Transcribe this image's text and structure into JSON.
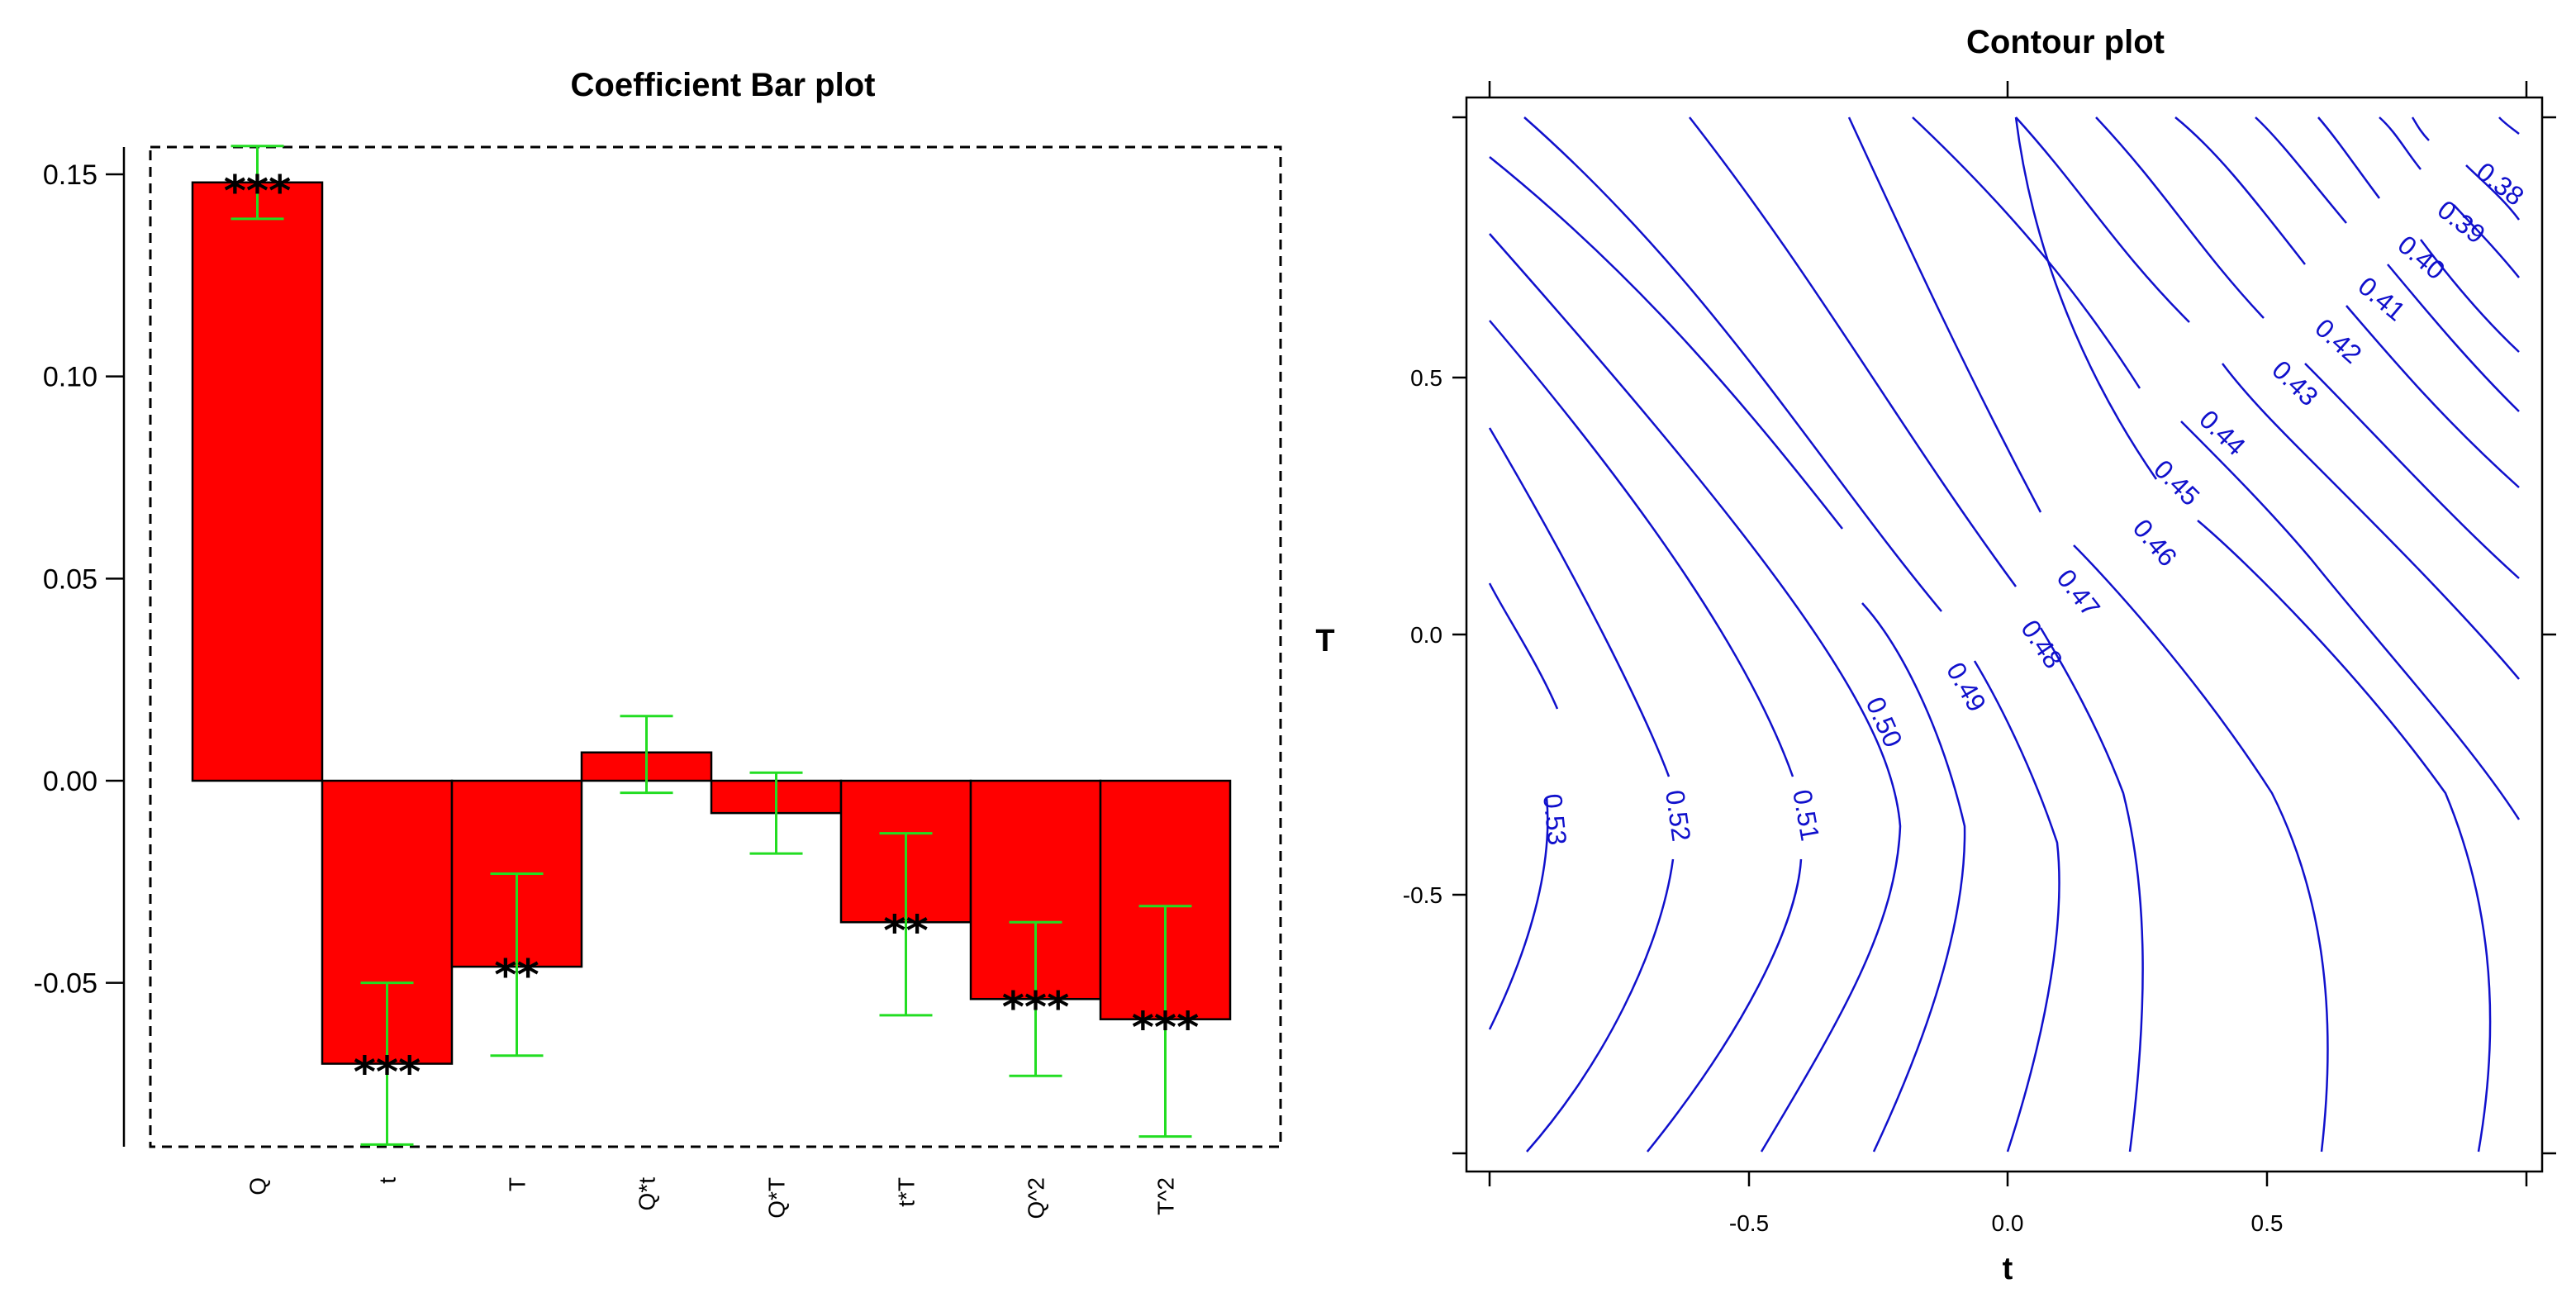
{
  "chart_data": [
    {
      "type": "bar",
      "title": "Coefficient Bar plot",
      "categories": [
        "Q",
        "t",
        "T",
        "Q*t",
        "Q*T",
        "t*T",
        "Q^2",
        "T^2"
      ],
      "values": [
        0.148,
        -0.07,
        -0.046,
        0.007,
        -0.008,
        -0.035,
        -0.054,
        -0.059
      ],
      "error_low": [
        0.139,
        -0.09,
        -0.068,
        -0.003,
        -0.018,
        -0.058,
        -0.073,
        -0.088
      ],
      "error_high": [
        0.157,
        -0.05,
        -0.023,
        0.016,
        0.002,
        -0.013,
        -0.035,
        -0.031
      ],
      "significance": [
        "***",
        "***",
        "**",
        "",
        "",
        "**",
        "***",
        "***"
      ],
      "yticks": [
        "0.15",
        "0.10",
        "0.05",
        "0.00",
        "-0.05"
      ],
      "ylim": [
        -0.09,
        0.157
      ],
      "colors": {
        "bar": "#ff0000",
        "errorbar": "#22dd22",
        "border": "#000000"
      }
    },
    {
      "type": "contour",
      "title": "Contour plot",
      "xlabel": "t",
      "ylabel": "T",
      "xlim": [
        -1,
        1
      ],
      "ylim": [
        -1,
        1
      ],
      "xticks": [
        "-0.5",
        "0.0",
        "0.5"
      ],
      "yticks": [
        "0.5",
        "0.0",
        "-0.5"
      ],
      "levels": [
        "0.38",
        "0.39",
        "0.40",
        "0.41",
        "0.42",
        "0.43",
        "0.44",
        "0.45",
        "0.46",
        "0.47",
        "0.48",
        "0.49",
        "0.50",
        "0.51",
        "0.52",
        "0.53"
      ],
      "colors": {
        "line": "#1010cc"
      }
    }
  ]
}
